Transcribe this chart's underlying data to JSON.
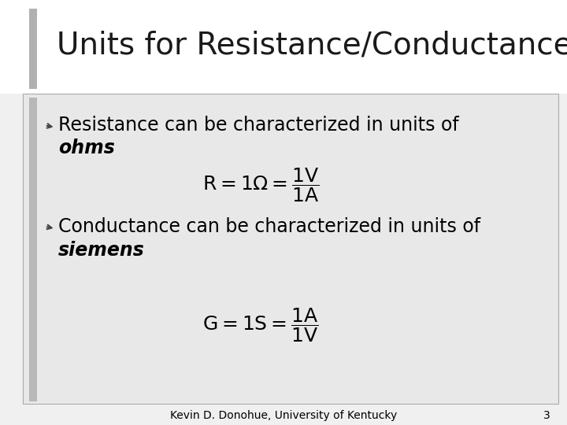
{
  "title": "Units for Resistance/Conductance",
  "title_fontsize": 28,
  "title_color": "#1a1a1a",
  "bg_color": "#f0f0f0",
  "header_bg": "#ffffff",
  "content_bg": "#e8e8e8",
  "bullet1_line1": "Resistance can be characterized in units of",
  "bullet1_line2_bold_italic": "ohms",
  "bullet1_line2_rest": ":",
  "formula1_latex": "$\\mathrm{R = 1\\Omega = \\dfrac{1V}{1A}}$",
  "bullet2_line1": "Conductance can be characterized in units of",
  "bullet2_line2_bold_italic": "siemens",
  "bullet2_line2_rest": ":",
  "formula2_latex": "$\\mathrm{G = 1S = \\dfrac{1A}{1V}}$",
  "footer_text": "Kevin D. Donohue, University of Kentucky",
  "page_number": "3",
  "footer_fontsize": 10,
  "bullet_fontsize": 17,
  "formula_fontsize": 18,
  "left_bar_color": "#b0b0b0",
  "arrow_color": "#444444"
}
